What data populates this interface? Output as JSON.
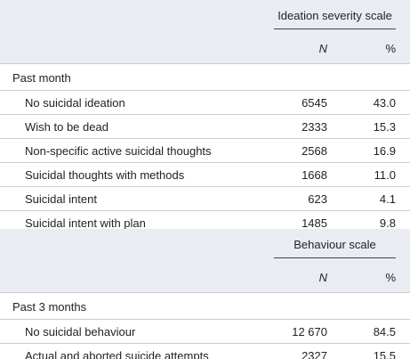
{
  "header": {
    "scale": "Ideation severity scale",
    "n": "N",
    "pct": "%"
  },
  "sections": [
    {
      "title": "Past month",
      "rows": [
        [
          "No suicidal ideation",
          "6545",
          "43.0"
        ],
        [
          "Wish to be dead",
          "2333",
          "15.3"
        ],
        [
          "Non-specific active suicidal thoughts",
          "2568",
          "16.9"
        ],
        [
          "Suicidal thoughts with methods",
          "1668",
          "11.0"
        ],
        [
          "Suicidal intent",
          "623",
          "4.1"
        ],
        [
          "Suicidal intent with plan",
          "1485",
          "9.8"
        ]
      ]
    },
    {
      "scale": "Behaviour scale",
      "n": "N",
      "pct": "%",
      "title": "Past 3 months",
      "rows": [
        [
          "No suicidal behaviour",
          "12 670",
          "84.5"
        ],
        [
          "Actual and aborted suicide attempts",
          "2327",
          "15.5"
        ]
      ]
    }
  ]
}
